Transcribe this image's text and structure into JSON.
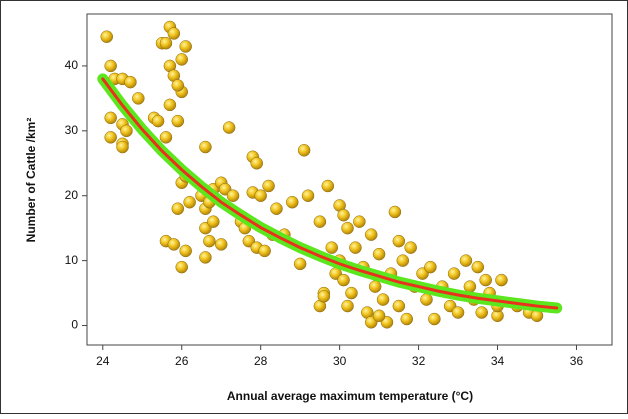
{
  "chart_data": {
    "type": "scatter",
    "x_label": "Annual average maximum temperature (°C)",
    "y_label": "Number of Cattle /km²",
    "x": [
      24.1,
      24.2,
      24.3,
      24.5,
      24.7,
      24.2,
      24.5,
      24.6,
      24.2,
      24.5,
      24.5,
      24.9,
      25.3,
      25.4,
      25.5,
      25.6,
      25.7,
      25.8,
      25.7,
      25.8,
      26.0,
      26.0,
      26.1,
      25.7,
      25.9,
      25.6,
      25.8,
      26.1,
      26.0,
      25.9,
      26.0,
      26.1,
      26.2,
      25.6,
      25.9,
      26.6,
      26.5,
      26.6,
      26.7,
      26.8,
      26.6,
      26.7,
      26.6,
      26.8,
      27.0,
      27.1,
      27.2,
      27.3,
      27.0,
      27.5,
      27.6,
      27.8,
      27.9,
      27.8,
      28.0,
      27.7,
      27.9,
      28.2,
      28.1,
      28.3,
      28.4,
      28.6,
      28.8,
      29.0,
      29.1,
      29.2,
      29.5,
      29.7,
      29.8,
      29.9,
      29.6,
      29.5,
      29.6,
      30.0,
      30.1,
      30.2,
      30.0,
      30.1,
      30.2,
      30.3,
      30.4,
      30.5,
      30.6,
      30.7,
      30.8,
      30.9,
      31.0,
      31.1,
      31.2,
      31.3,
      31.4,
      31.5,
      31.6,
      31.7,
      31.8,
      31.9,
      31.5,
      30.8,
      31.0,
      32.1,
      32.2,
      32.3,
      32.4,
      32.6,
      32.8,
      32.9,
      33.0,
      33.2,
      33.3,
      33.4,
      33.5,
      33.6,
      33.7,
      33.8,
      34.0,
      34.0,
      34.1,
      34.5,
      34.8,
      35.0
    ],
    "values": [
      44.5,
      40,
      38,
      38,
      37.5,
      32,
      31,
      30,
      29,
      28,
      27.5,
      35,
      32,
      31.5,
      43.5,
      43.5,
      46,
      45,
      40,
      38.5,
      41,
      36,
      43,
      34,
      37,
      13,
      12.5,
      11.5,
      9,
      18,
      22,
      23,
      19,
      29,
      31.5,
      27.5,
      20,
      18,
      19,
      21,
      15,
      13,
      10.5,
      16,
      22,
      21,
      30.5,
      20,
      12.5,
      16,
      15,
      26,
      25,
      20.5,
      20,
      13,
      12,
      21.5,
      11.5,
      14,
      18,
      14,
      19,
      9.5,
      27,
      20,
      16,
      21.5,
      12,
      8,
      5,
      3,
      4.5,
      18.5,
      17,
      15,
      10,
      7,
      3,
      5,
      12,
      16,
      9,
      2,
      14,
      6,
      11,
      4,
      0.5,
      8,
      17.5,
      3,
      10,
      1,
      12,
      6,
      13,
      0.5,
      1.5,
      8,
      4,
      9,
      1,
      6,
      3,
      8,
      2,
      10,
      6,
      4,
      9,
      2,
      7,
      5,
      1.5,
      3,
      7,
      3,
      2,
      1.5
    ],
    "fit": {
      "color": "#e8321c",
      "band_color": "#5ce61e",
      "x": [
        24,
        24.5,
        25,
        25.5,
        26,
        26.5,
        27,
        27.5,
        28,
        28.5,
        29,
        29.5,
        30,
        30.5,
        31,
        31.5,
        32,
        32.5,
        33,
        33.5,
        34,
        34.5,
        35,
        35.5
      ],
      "values": [
        38,
        33.9,
        30.2,
        26.9,
        24.0,
        21.4,
        19.0,
        17.0,
        15.1,
        13.5,
        12.0,
        10.7,
        9.5,
        8.5,
        7.6,
        6.7,
        6.0,
        5.3,
        4.7,
        4.2,
        3.8,
        3.4,
        3.0,
        2.7
      ]
    },
    "xlim": [
      23.6,
      36.9
    ],
    "ylim": [
      -3,
      48
    ],
    "xticks": [
      24,
      26,
      28,
      30,
      32,
      34,
      36
    ],
    "yticks": [
      0,
      10,
      20,
      30,
      40
    ]
  }
}
